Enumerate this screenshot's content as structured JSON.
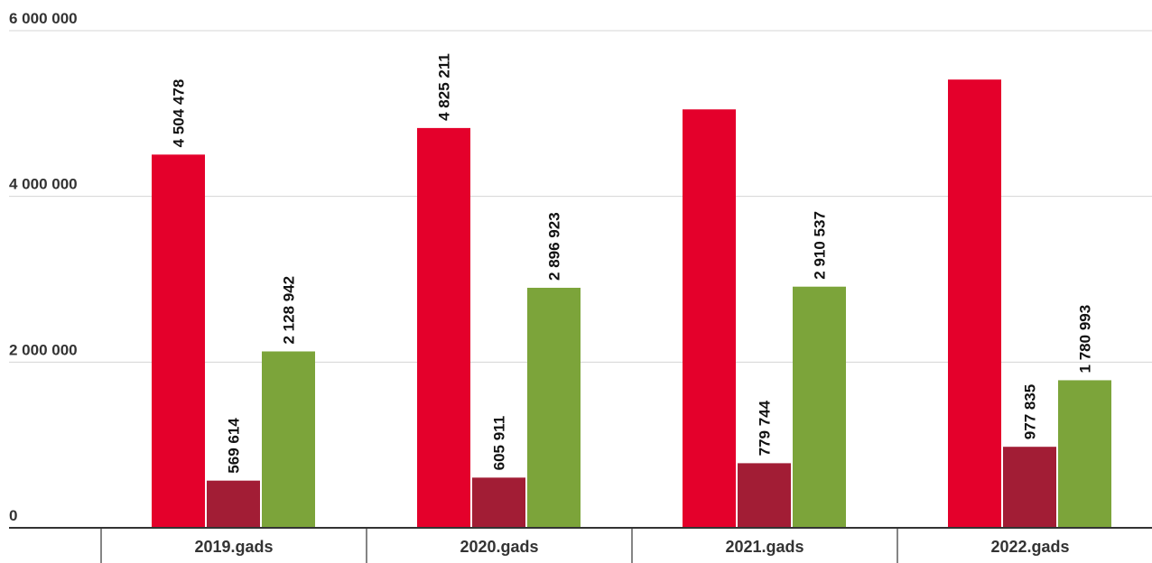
{
  "chart_data": {
    "type": "bar",
    "categories": [
      "2019.gads",
      "2020.gads",
      "2021.gads",
      "2022.gads"
    ],
    "series": [
      {
        "values": [
          4504478,
          4825211,
          5050000,
          5410000
        ],
        "labels": [
          "4 504 478",
          "4 825 211",
          "",
          ""
        ],
        "color": "#e4002b"
      },
      {
        "values": [
          569614,
          605911,
          779744,
          977835
        ],
        "labels": [
          "569 614",
          "605 911",
          "779 744",
          "977 835"
        ],
        "color": "#a21d35"
      },
      {
        "values": [
          2128942,
          2896923,
          2910537,
          1780993
        ],
        "labels": [
          "2 128 942",
          "2 896 923",
          "2 910 537",
          "1 780 993"
        ],
        "color": "#7ca43a"
      }
    ],
    "ylim": [
      0,
      6000000
    ],
    "yticks": [
      {
        "value": 0,
        "label": "0"
      },
      {
        "value": 2000000,
        "label": "2 000 000"
      },
      {
        "value": 4000000,
        "label": "4 000 000"
      },
      {
        "value": 6000000,
        "label": "6 000 000"
      }
    ],
    "grid": true,
    "title": "",
    "xlabel": "",
    "ylabel": ""
  }
}
